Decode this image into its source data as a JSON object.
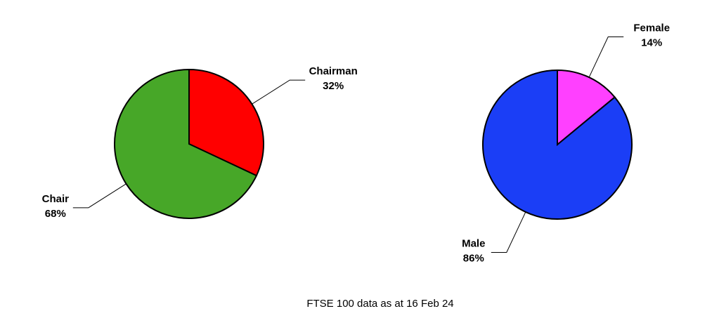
{
  "chart_data": [
    {
      "type": "pie",
      "categories": [
        "Chairman",
        "Chair"
      ],
      "values": [
        32,
        68
      ],
      "value_labels": [
        "32%",
        "68%"
      ],
      "colors": [
        "#ff0000",
        "#47a728"
      ]
    },
    {
      "type": "pie",
      "categories": [
        "Female",
        "Male"
      ],
      "values": [
        14,
        86
      ],
      "value_labels": [
        "14%",
        "86%"
      ],
      "colors": [
        "#ff40ff",
        "#1b3ef6"
      ]
    }
  ],
  "caption": "FTSE 100 data as at 16 Feb 24"
}
